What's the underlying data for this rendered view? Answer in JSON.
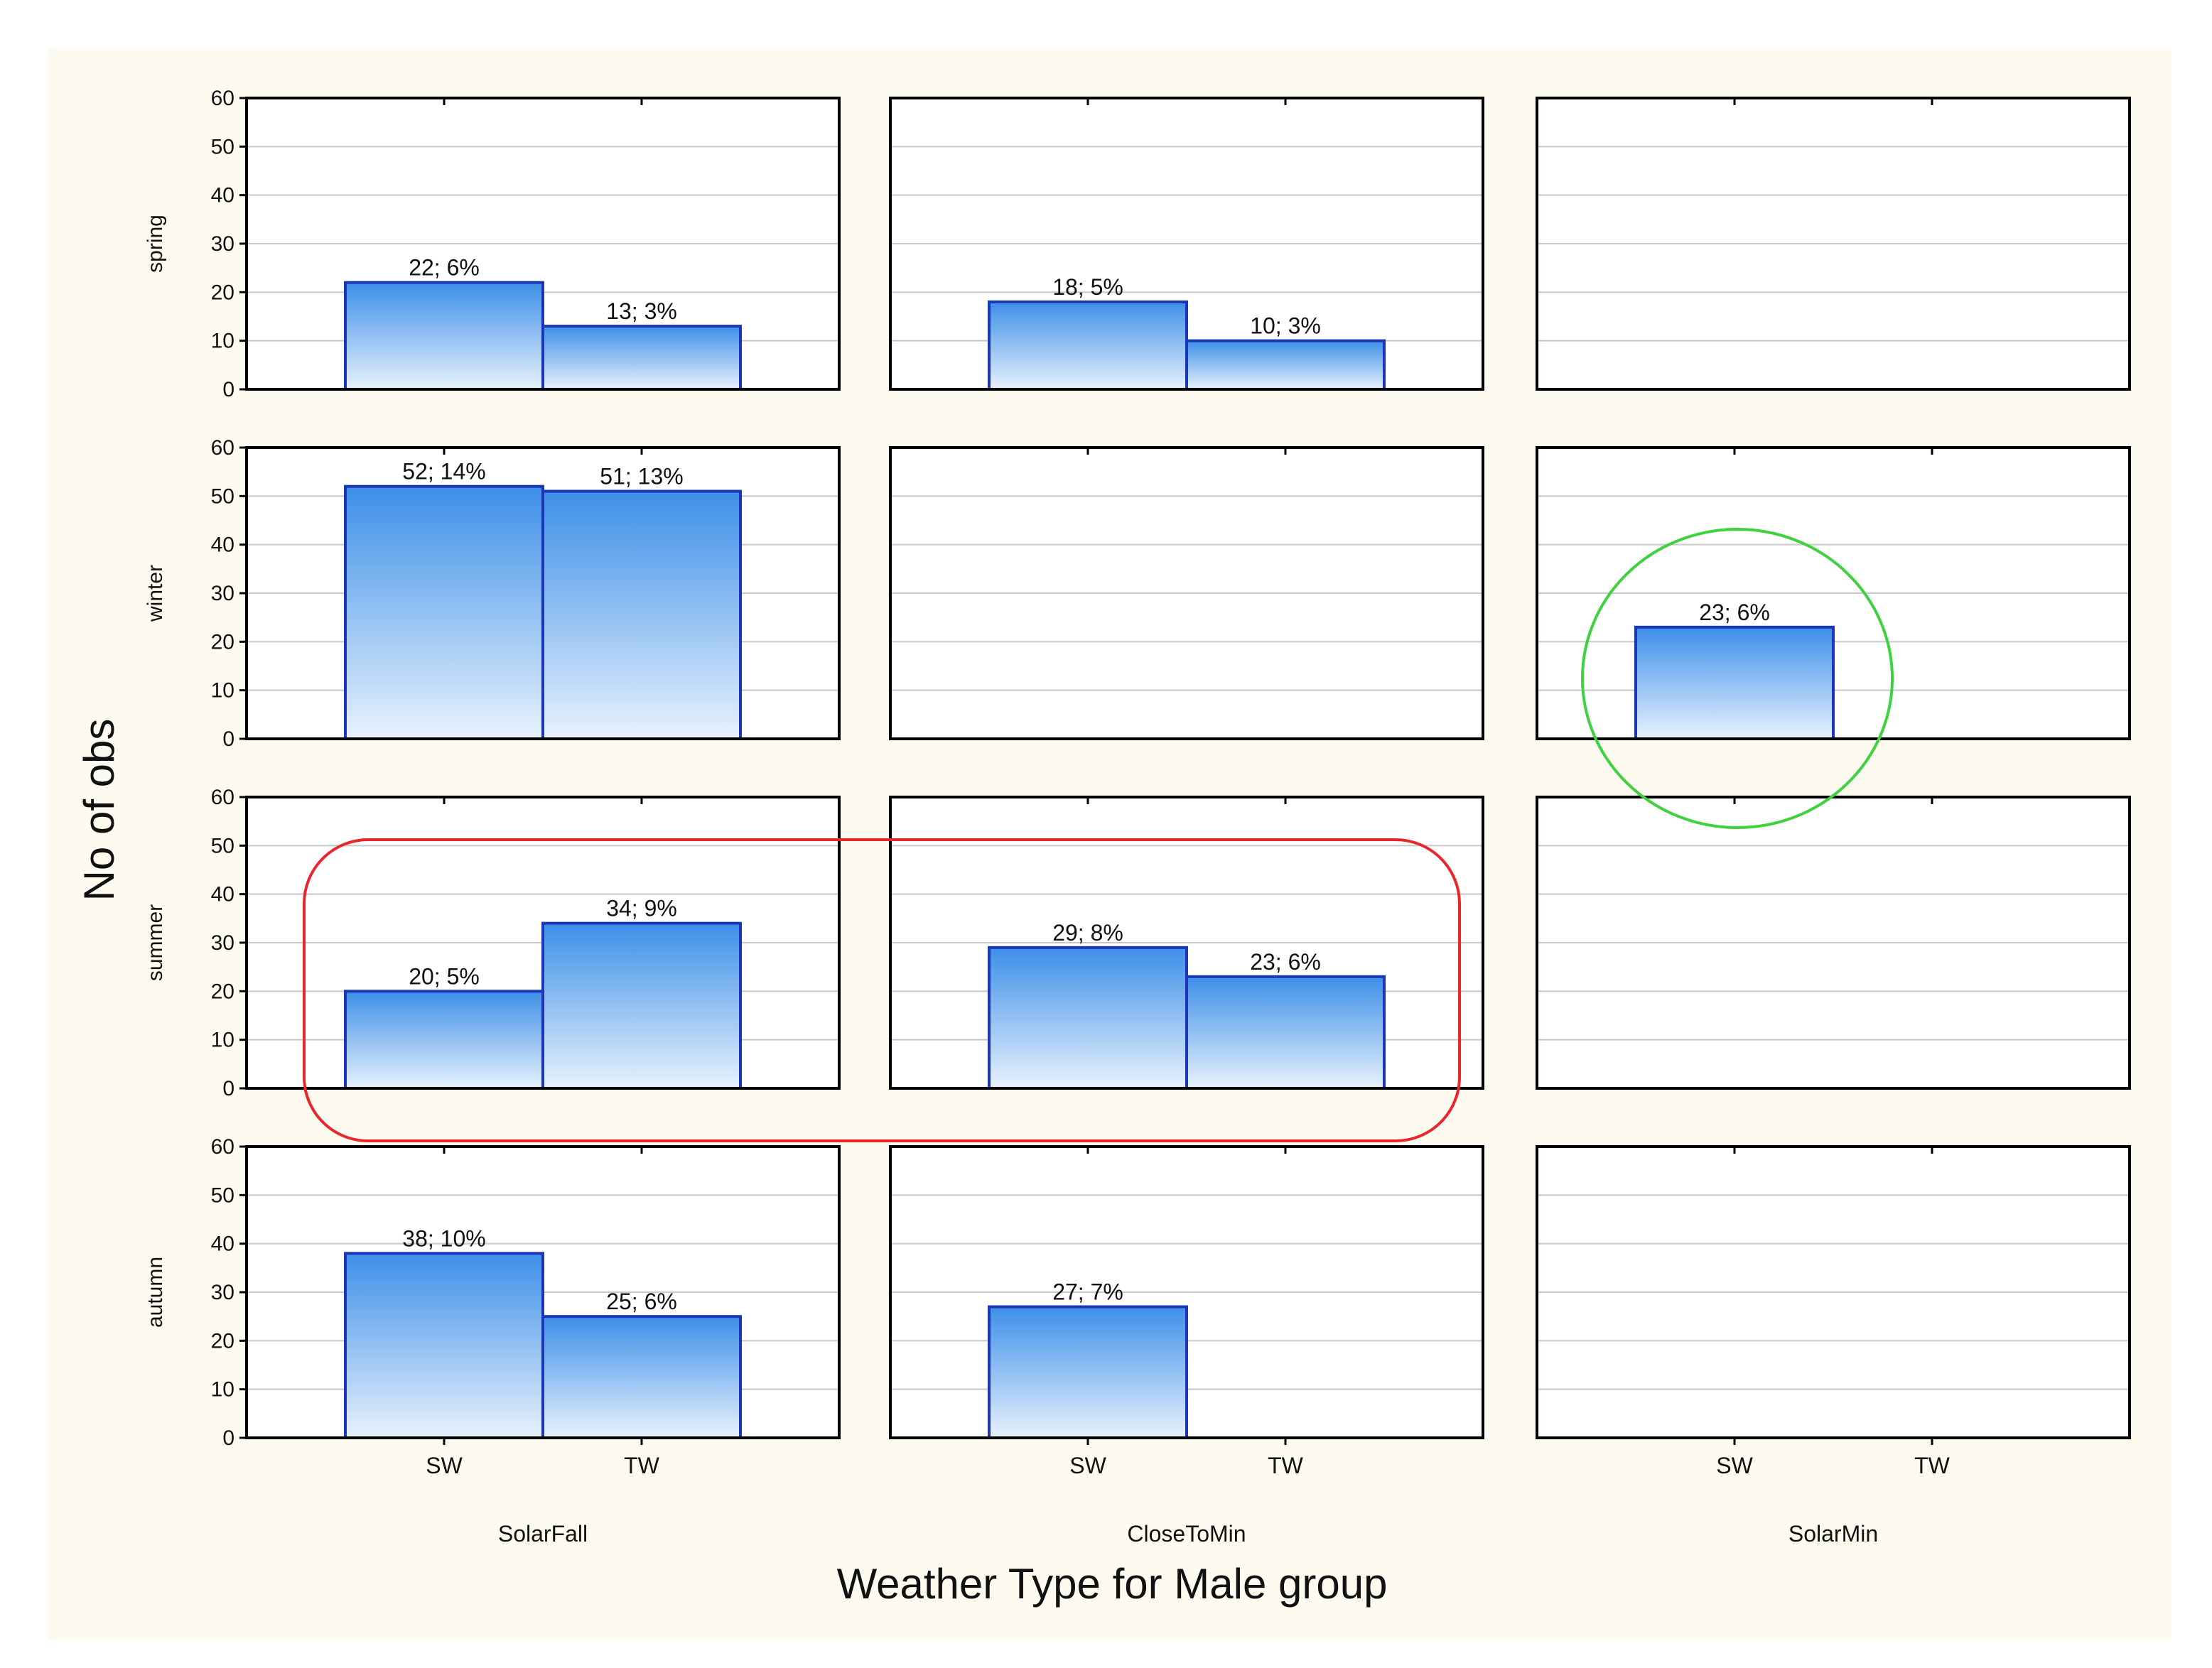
{
  "chart_data": {
    "type": "bar",
    "xlabel": "Weather Type for Male group",
    "ylabel": "No of obs",
    "ylim": [
      0,
      60
    ],
    "yticks": [
      0,
      10,
      20,
      30,
      40,
      50,
      60
    ],
    "grid": true,
    "categories": [
      "SW",
      "TW"
    ],
    "rows": [
      "spring",
      "winter",
      "summer",
      "autumn"
    ],
    "columns": [
      "SolarFall",
      "CloseToMin",
      "SolarMin"
    ],
    "colors": {
      "background": "#fdfaf0",
      "bar_top": "#3d8fe8",
      "bar_bottom": "#e8f2fd",
      "bar_stroke": "#1b36b8",
      "grid": "#c8c8c8",
      "highlight_ellipse": "#3fd13f",
      "highlight_rect": "#e8262c"
    },
    "panels": [
      {
        "row": "spring",
        "column": "SolarFall",
        "bars": [
          {
            "category": "SW",
            "value": 22,
            "label": "22; 6%"
          },
          {
            "category": "TW",
            "value": 13,
            "label": "13; 3%"
          }
        ]
      },
      {
        "row": "spring",
        "column": "CloseToMin",
        "bars": [
          {
            "category": "SW",
            "value": 18,
            "label": "18; 5%"
          },
          {
            "category": "TW",
            "value": 10,
            "label": "10; 3%"
          }
        ]
      },
      {
        "row": "spring",
        "column": "SolarMin",
        "bars": []
      },
      {
        "row": "winter",
        "column": "SolarFall",
        "bars": [
          {
            "category": "SW",
            "value": 52,
            "label": "52; 14%"
          },
          {
            "category": "TW",
            "value": 51,
            "label": "51; 13%"
          }
        ]
      },
      {
        "row": "winter",
        "column": "CloseToMin",
        "bars": []
      },
      {
        "row": "winter",
        "column": "SolarMin",
        "bars": [
          {
            "category": "SW",
            "value": 23,
            "label": "23; 6%"
          }
        ]
      },
      {
        "row": "summer",
        "column": "SolarFall",
        "bars": [
          {
            "category": "SW",
            "value": 20,
            "label": "20; 5%"
          },
          {
            "category": "TW",
            "value": 34,
            "label": "34; 9%"
          }
        ]
      },
      {
        "row": "summer",
        "column": "CloseToMin",
        "bars": [
          {
            "category": "SW",
            "value": 29,
            "label": "29; 8%"
          },
          {
            "category": "TW",
            "value": 23,
            "label": "23; 6%"
          }
        ]
      },
      {
        "row": "summer",
        "column": "SolarMin",
        "bars": []
      },
      {
        "row": "autumn",
        "column": "SolarFall",
        "bars": [
          {
            "category": "SW",
            "value": 38,
            "label": "38; 10%"
          },
          {
            "category": "TW",
            "value": 25,
            "label": "25; 6%"
          }
        ]
      },
      {
        "row": "autumn",
        "column": "CloseToMin",
        "bars": [
          {
            "category": "SW",
            "value": 27,
            "label": "27; 7%"
          }
        ]
      },
      {
        "row": "autumn",
        "column": "SolarMin",
        "bars": []
      }
    ]
  }
}
